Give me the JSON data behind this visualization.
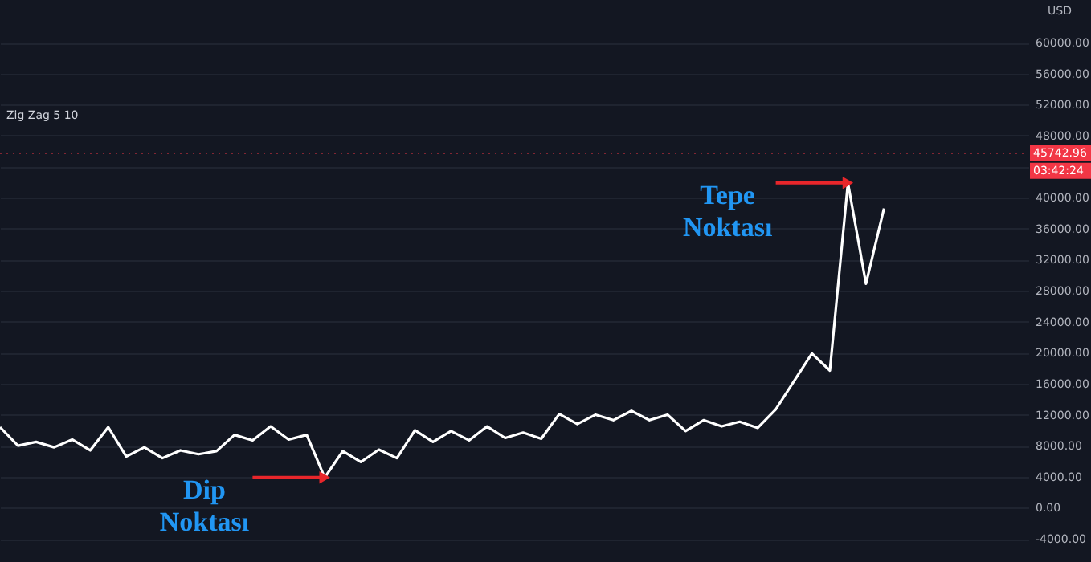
{
  "chart_data": {
    "type": "line",
    "title": "Zig Zag 5 10",
    "ylabel": "USD",
    "categories": [
      null,
      null,
      null,
      null,
      null,
      null,
      null,
      null,
      null,
      null,
      null,
      null,
      null,
      null,
      null,
      null,
      null,
      null,
      null,
      null,
      null,
      null,
      null,
      null,
      null,
      null,
      null,
      null,
      null,
      null,
      null,
      null,
      null,
      null,
      null,
      null,
      null,
      null,
      null,
      null,
      null,
      null,
      null,
      null,
      null,
      null,
      null,
      null,
      null,
      null,
      null,
      null,
      null,
      null,
      null,
      null,
      null,
      null
    ],
    "series": [
      {
        "color": "#ffffff",
        "values": [
          10400,
          8000,
          8500,
          7800,
          8800,
          7400,
          10400,
          6600,
          7800,
          6400,
          7400,
          6900,
          7300,
          9400,
          8700,
          10500,
          8800,
          9400,
          3900,
          7300,
          5900,
          7500,
          6400,
          10000,
          8500,
          9900,
          8700,
          10500,
          9000,
          9700,
          8900,
          12100,
          10800,
          12000,
          11300,
          12500,
          11300,
          12000,
          9900,
          11300,
          10500,
          11100,
          10300,
          12700,
          16300,
          19900,
          17700,
          41900,
          28900,
          38600,
          null,
          null,
          null,
          null,
          null,
          null,
          null,
          null
        ]
      }
    ],
    "ylim": [
      -7000,
      65500
    ],
    "yticks": [
      {
        "value": -4000,
        "label": "-4000.00"
      },
      {
        "value": 0,
        "label": "0.00"
      },
      {
        "value": 4000,
        "label": "4000.00"
      },
      {
        "value": 8000,
        "label": "8000.00"
      },
      {
        "value": 12000,
        "label": "12000.00"
      },
      {
        "value": 16000,
        "label": "16000.00"
      },
      {
        "value": 20000,
        "label": "20000.00"
      },
      {
        "value": 24000,
        "label": "24000.00"
      },
      {
        "value": 28000,
        "label": "28000.00"
      },
      {
        "value": 32000,
        "label": "32000.00"
      },
      {
        "value": 36000,
        "label": "36000.00"
      },
      {
        "value": 40000,
        "label": "40000.00"
      },
      {
        "value": 44000,
        "label": null
      },
      {
        "value": 48000,
        "label": "48000.00"
      },
      {
        "value": 52000,
        "label": "52000.00"
      },
      {
        "value": 56000,
        "label": "56000.00"
      },
      {
        "value": 60000,
        "label": "60000.00"
      }
    ],
    "tick_labels": "y",
    "grid": "y",
    "marker": "none",
    "line_style": "solid",
    "ref_lines": [
      {
        "axis": "y",
        "value": 45742.96,
        "label": "45742.96",
        "color": "#f23645",
        "line_style": "dotted"
      }
    ],
    "annotations": [
      "Dip Noktası",
      "Tepe Noktası",
      "03:42:24"
    ]
  }
}
